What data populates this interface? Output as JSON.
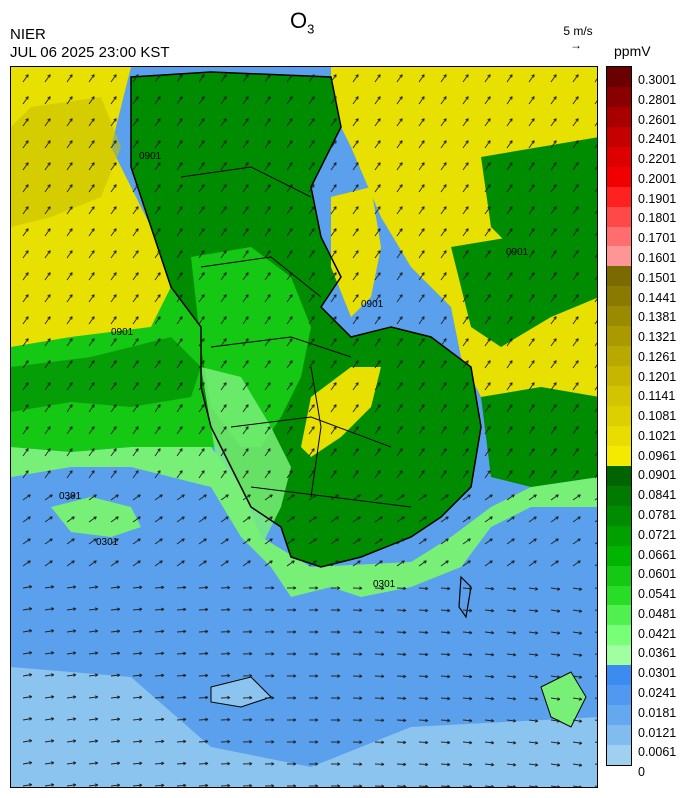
{
  "header": {
    "agency": "NIER",
    "timestamp": "JUL 06 2025 23:00 KST",
    "title_main": "O",
    "title_sub": "3",
    "wind_ref_label": "5 m/s",
    "wind_ref_arrow": "→",
    "unit": "ppmV"
  },
  "colorbar": {
    "labels": [
      "0.3001",
      "0.2801",
      "0.2601",
      "0.2401",
      "0.2201",
      "0.2001",
      "0.1901",
      "0.1801",
      "0.1701",
      "0.1601",
      "0.1501",
      "0.1441",
      "0.1381",
      "0.1321",
      "0.1261",
      "0.1201",
      "0.1141",
      "0.1081",
      "0.1021",
      "0.0961",
      "0.0901",
      "0.0841",
      "0.0781",
      "0.0721",
      "0.0661",
      "0.0601",
      "0.0541",
      "0.0481",
      "0.0421",
      "0.0361",
      "0.0301",
      "0.0241",
      "0.0181",
      "0.0121",
      "0.0061",
      "0"
    ],
    "colors": [
      "#6a0000",
      "#8a0000",
      "#a80000",
      "#c40000",
      "#dc0000",
      "#f00000",
      "#ff2020",
      "#ff4848",
      "#ff6e6e",
      "#ff9696",
      "#7a6a00",
      "#8a7a00",
      "#9a8a00",
      "#aa9a00",
      "#b8a800",
      "#c6b600",
      "#d2c400",
      "#dcd000",
      "#e8dc00",
      "#f4ea00",
      "#006400",
      "#007a00",
      "#008c00",
      "#00a000",
      "#00b400",
      "#14c814",
      "#28dc28",
      "#50f050",
      "#78ff78",
      "#a0ffa0",
      "#3c8cf0",
      "#5098f0",
      "#64a8f0",
      "#80bcf0",
      "#a0d0f0"
    ],
    "field_colors": {
      "sea_blue": "#5aa0ec",
      "sea_light": "#8cc4f0",
      "yellow": "#e8e000",
      "yellow_dark": "#c8c000",
      "dark_green": "#008c00",
      "green": "#14c814",
      "light_green": "#78f078"
    }
  },
  "map": {
    "contour_labels": [
      "0901",
      "0901",
      "0901",
      "0901",
      "0301",
      "0301",
      "0301"
    ]
  }
}
